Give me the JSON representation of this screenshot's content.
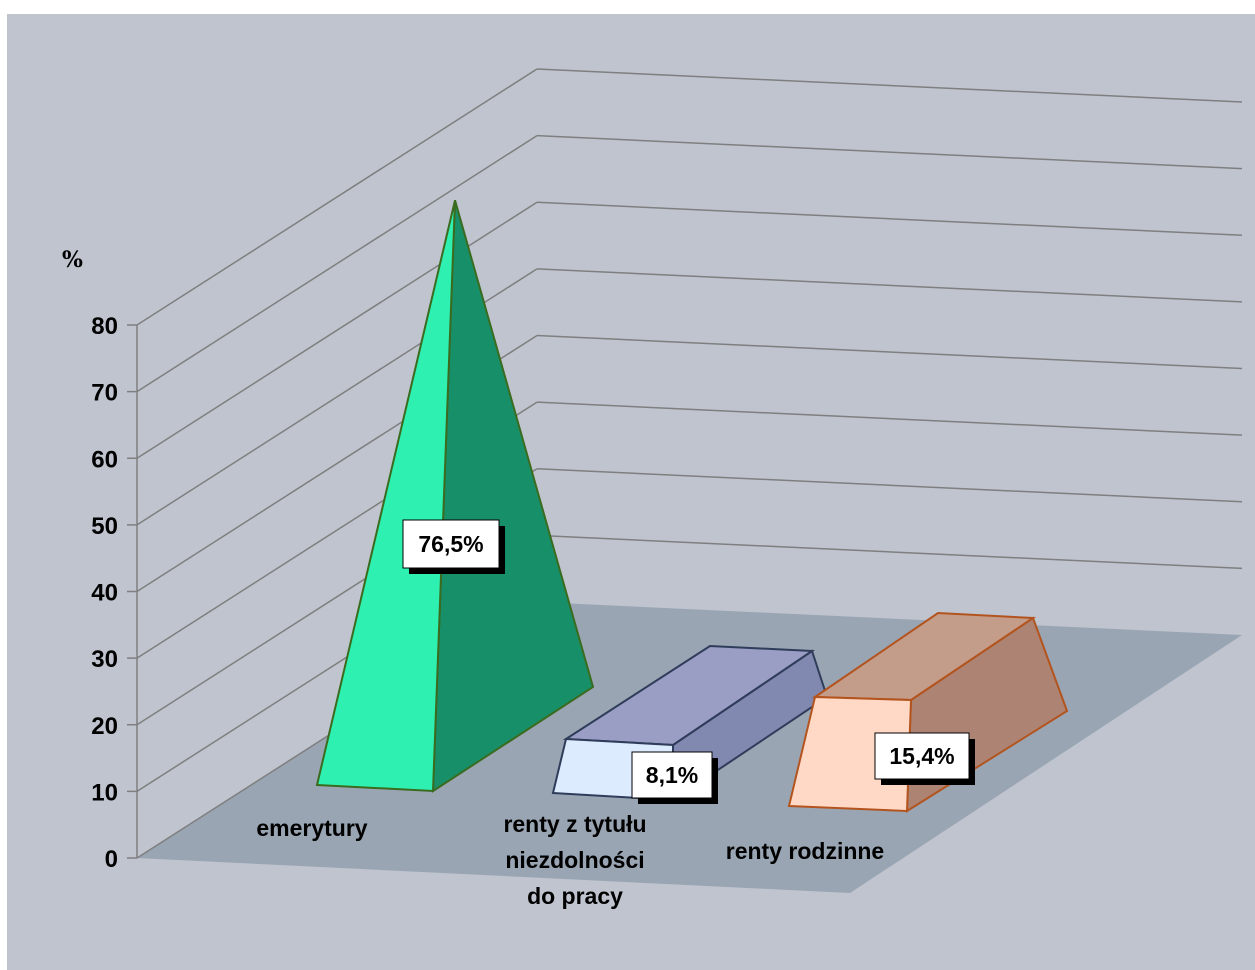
{
  "chart_data": {
    "type": "bar",
    "subtype": "3d-perspective (pyramid, trapezoid, trapezoid)",
    "title": "",
    "unit_label": "%",
    "ylim": [
      0,
      80
    ],
    "y_ticks": [
      "0",
      "10",
      "20",
      "30",
      "40",
      "50",
      "60",
      "70",
      "80"
    ],
    "categories": [
      {
        "label_lines": [
          "emerytury"
        ]
      },
      {
        "label_lines": [
          "renty z tytułu",
          "niezdolności",
          "do pracy"
        ]
      },
      {
        "label_lines": [
          "renty rodzinne"
        ]
      }
    ],
    "values": [
      76.5,
      8.1,
      15.4
    ],
    "data_labels": [
      "76,5%",
      "8,1%",
      "15,4%"
    ],
    "gridlines": true,
    "legend": "none",
    "colors": {
      "background": "#BFC4CF",
      "floor": "#99A5B3",
      "gridline": "#7F7F7F",
      "emerytury_front": "#2EF0B1",
      "emerytury_side": "#179069",
      "emerytury_edge": "#3A6B1F",
      "renty_niezdolnosci_front": "#DDEBFF",
      "renty_niezdolnosci_top": "#9A9EC5",
      "renty_niezdolnosci_side": "#8289B0",
      "renty_niezdolnosci_edge": "#2F3C5A",
      "renty_rodzinne_front": "#FFD9C6",
      "renty_rodzinne_top": "#C49C8A",
      "renty_rodzinne_side": "#AD8473",
      "renty_rodzinne_edge": "#B3541E"
    }
  }
}
